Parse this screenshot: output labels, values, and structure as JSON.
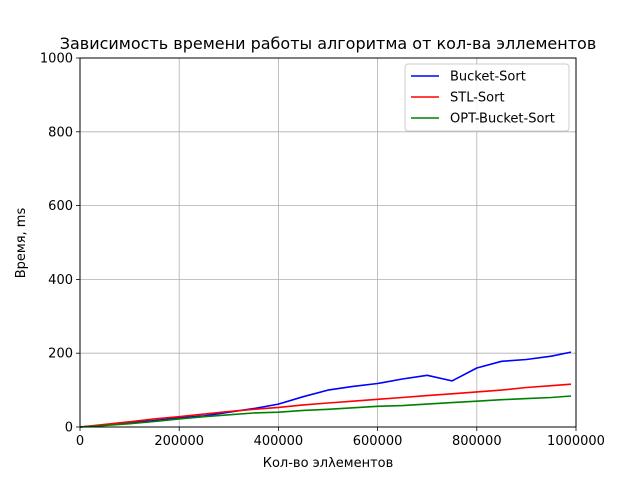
{
  "chart_data": {
    "type": "line",
    "title": "Зависимость времени работы алгоритма от кол-ва эллементов",
    "xlabel": "Кол-во элλементов",
    "ylabel": "Время, ms",
    "xlim": [
      0,
      1000000
    ],
    "ylim": [
      0,
      1000
    ],
    "xticks": [
      0,
      200000,
      400000,
      600000,
      800000,
      1000000
    ],
    "yticks": [
      0,
      200,
      400,
      600,
      800,
      1000
    ],
    "grid": true,
    "legend_position": "top-right",
    "x": [
      0,
      50000,
      100000,
      150000,
      200000,
      250000,
      300000,
      350000,
      400000,
      450000,
      500000,
      550000,
      600000,
      650000,
      700000,
      750000,
      800000,
      850000,
      900000,
      950000,
      990000
    ],
    "series": [
      {
        "name": "Bucket-Sort",
        "color": "#0000ff",
        "values": [
          0,
          5,
          12,
          17,
          25,
          30,
          40,
          50,
          62,
          82,
          100,
          110,
          118,
          130,
          140,
          125,
          160,
          178,
          183,
          192,
          203
        ]
      },
      {
        "name": "STL-Sort",
        "color": "#ff0000",
        "values": [
          0,
          7,
          14,
          22,
          28,
          35,
          42,
          48,
          53,
          60,
          65,
          70,
          75,
          80,
          85,
          90,
          95,
          100,
          107,
          112,
          116
        ]
      },
      {
        "name": "OPT-Bucket-Sort",
        "color": "#008000",
        "values": [
          0,
          4,
          9,
          15,
          22,
          28,
          33,
          38,
          40,
          45,
          48,
          52,
          56,
          58,
          62,
          66,
          70,
          74,
          77,
          80,
          84
        ]
      }
    ]
  }
}
